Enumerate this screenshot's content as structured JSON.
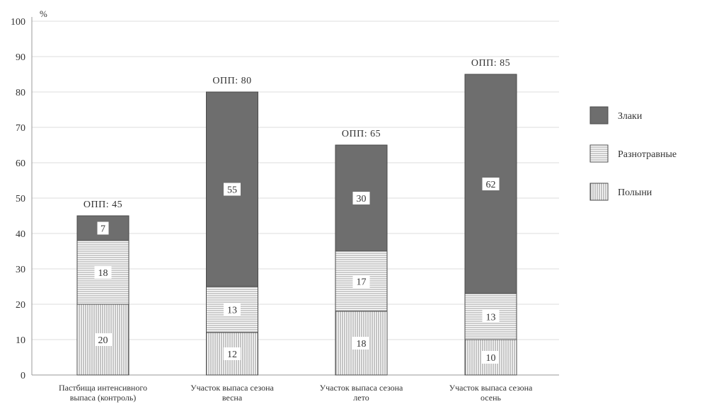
{
  "chart_data": {
    "type": "bar",
    "stacked": true,
    "y_unit": "%",
    "ylim": [
      0,
      100
    ],
    "yticks": [
      0,
      10,
      20,
      30,
      40,
      50,
      60,
      70,
      80,
      90,
      100
    ],
    "grid": true,
    "legend_position": "right",
    "categories": [
      [
        "Пастбища интенсивного",
        "выпаса (контроль)"
      ],
      [
        "Участок выпаса сезона",
        "весна"
      ],
      [
        "Участок выпаса сезона",
        "лето"
      ],
      [
        "Участок выпаса сезона",
        "осень"
      ]
    ],
    "series": [
      {
        "name": "Полыни",
        "values": [
          20,
          12,
          18,
          10
        ],
        "pattern": "vertical-lines",
        "color": "#e4e4e4"
      },
      {
        "name": "Разнотравные",
        "values": [
          18,
          13,
          17,
          13
        ],
        "pattern": "horizontal-lines",
        "color": "#eeeeee"
      },
      {
        "name": "Злаки",
        "values": [
          7,
          55,
          30,
          62
        ],
        "pattern": "solid",
        "color": "#6e6e6e"
      }
    ],
    "totals": [
      "ОПП: 45",
      "ОПП: 80",
      "ОПП: 65",
      "ОПП: 85"
    ],
    "legend_order": [
      "Злаки",
      "Разнотравные",
      "Полыни"
    ]
  }
}
